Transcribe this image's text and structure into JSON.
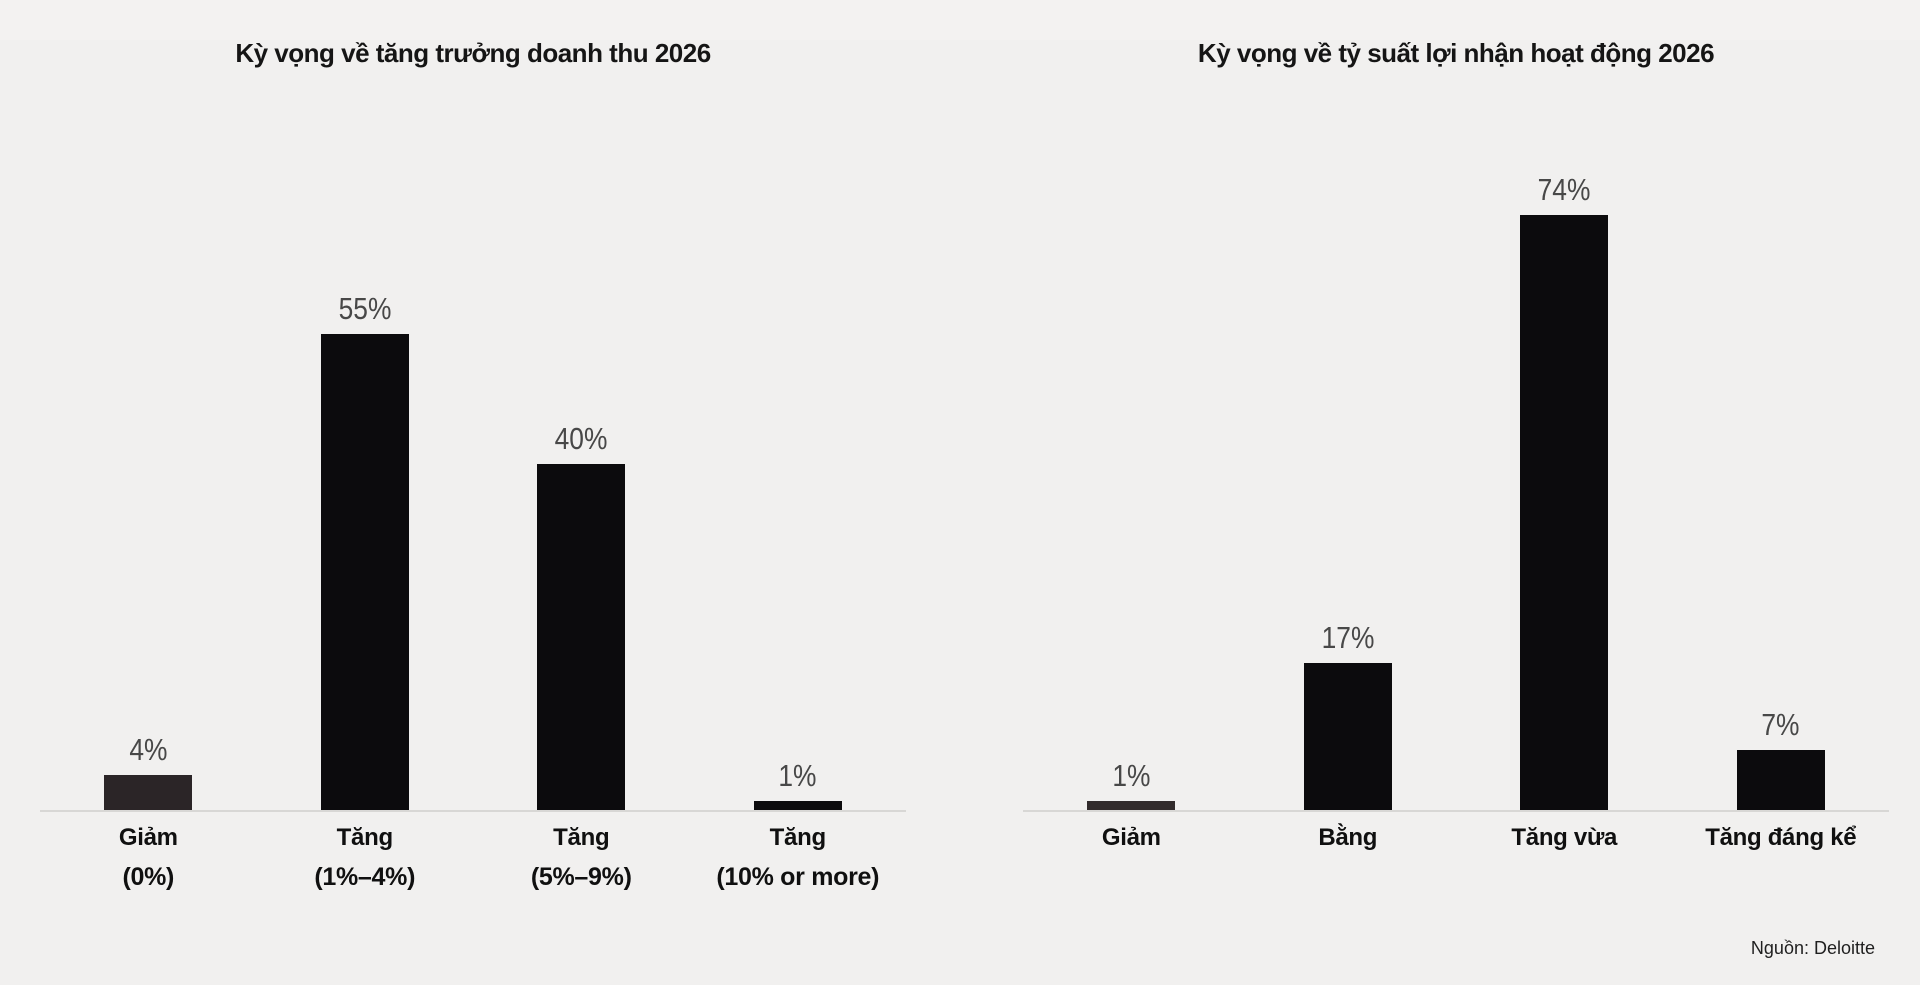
{
  "page": {
    "background": "#f2f1f0",
    "source_note": "Nguồn: Deloitte"
  },
  "colors": {
    "bar_default": "#0c0b0d",
    "bar_muted_first": "#2b2527",
    "axis_line": "#d8d7d5",
    "value_label": "#484848",
    "text": "#151515"
  },
  "chart_data": [
    {
      "type": "bar",
      "title": "Kỳ vọng về tăng trưởng doanh thu 2026",
      "categories": [
        "Giảm",
        "Tăng",
        "Tăng",
        "Tăng"
      ],
      "category_sublabels": [
        "(0%)",
        "(1%–4%)",
        "(5%–9%)",
        "(10% or more)"
      ],
      "values": [
        4,
        55,
        40,
        1
      ],
      "value_labels": [
        "4%",
        "55%",
        "40%",
        "1%"
      ],
      "bar_colors": [
        "#2b2527",
        "#0c0b0d",
        "#0c0b0d",
        "#0c0b0d"
      ],
      "xlabel": "",
      "ylabel": "",
      "ylim": [
        0,
        74
      ],
      "grid": false,
      "legend": null
    },
    {
      "type": "bar",
      "title": "Kỳ vọng về tỷ suất lợi nhận hoạt động 2026",
      "categories": [
        "Giảm",
        "Bằng",
        "Tăng vừa",
        "Tăng đáng kể"
      ],
      "category_sublabels": [
        "",
        "",
        "",
        ""
      ],
      "values": [
        1,
        17,
        74,
        7
      ],
      "value_labels": [
        "1%",
        "17%",
        "74%",
        "7%"
      ],
      "bar_colors": [
        "#322b2c",
        "#0c0b0d",
        "#0c0b0d",
        "#0c0b0d"
      ],
      "xlabel": "",
      "ylabel": "",
      "ylim": [
        0,
        74
      ],
      "grid": false,
      "legend": null
    }
  ]
}
